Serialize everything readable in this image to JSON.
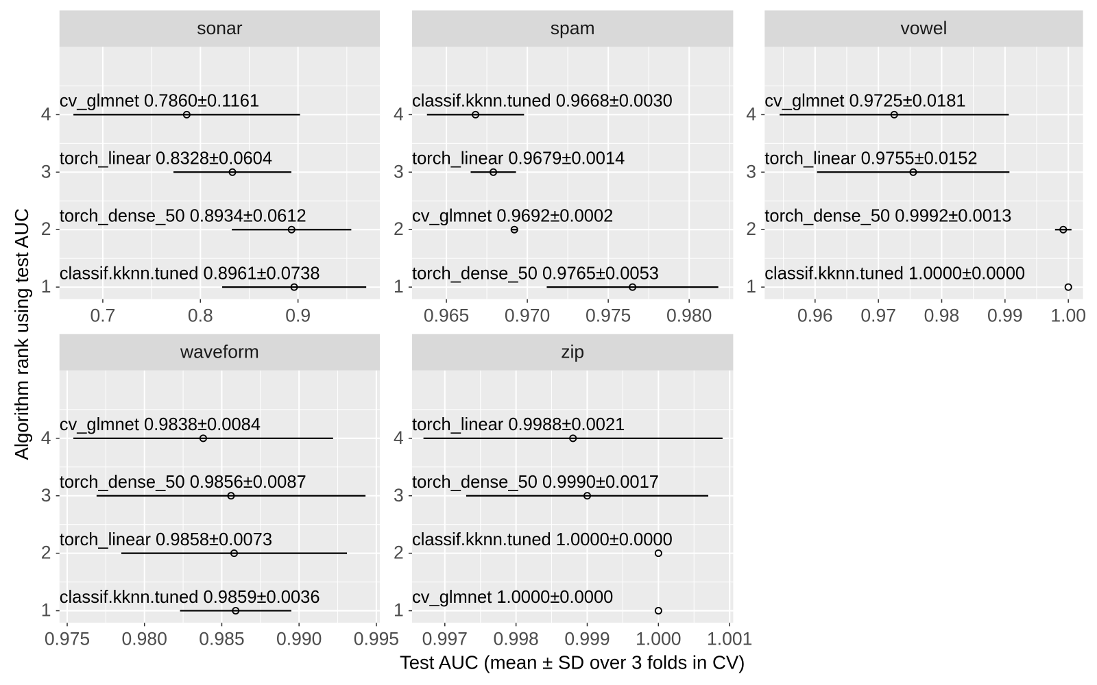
{
  "axis_labels": {
    "x": "Test AUC (mean ± SD over 3 folds in CV)",
    "y": "Algorithm rank using test AUC"
  },
  "chart_data": [
    {
      "type": "errorbar",
      "title": "sonar",
      "y": [
        4,
        3,
        2,
        1
      ],
      "values": [
        0.786,
        0.8328,
        0.8934,
        0.8961
      ],
      "errors": [
        0.1161,
        0.0604,
        0.0612,
        0.0738
      ],
      "value_labels": [
        "cv_glmnet 0.7860±0.1161",
        "torch_linear 0.8328±0.0604",
        "torch_dense_50 0.8934±0.0612",
        "classif.kknn.tuned 0.8961±0.0738"
      ],
      "xlim": [
        0.6556,
        0.9839
      ],
      "xticks": [
        0.7,
        0.8,
        0.9
      ],
      "ylim": [
        0.79,
        5.18
      ],
      "yticks": [
        1,
        2,
        3,
        4
      ]
    },
    {
      "type": "errorbar",
      "title": "spam",
      "y": [
        4,
        3,
        2,
        1
      ],
      "values": [
        0.9668,
        0.9679,
        0.9692,
        0.9765
      ],
      "errors": [
        0.003,
        0.0014,
        0.0002,
        0.0053
      ],
      "value_labels": [
        "classif.kknn.tuned 0.9668±0.0030",
        "torch_linear 0.9679±0.0014",
        "cv_glmnet 0.9692±0.0002",
        "torch_dense_50 0.9765±0.0053"
      ],
      "xlim": [
        0.96288,
        0.98272
      ],
      "xticks": [
        0.965,
        {
          "value": 0.97,
          "label": "0.970"
        },
        0.975,
        {
          "value": 0.98,
          "label": "0.980"
        }
      ],
      "ylim": [
        0.79,
        5.18
      ],
      "yticks": [
        1,
        2,
        3,
        4
      ]
    },
    {
      "type": "errorbar",
      "title": "vowel",
      "y": [
        4,
        3,
        2,
        1
      ],
      "values": [
        0.9725,
        0.9755,
        0.9992,
        1.0
      ],
      "errors": [
        0.0181,
        0.0152,
        0.0013,
        0.0
      ],
      "value_labels": [
        "cv_glmnet 0.9725±0.0181",
        "torch_linear 0.9755±0.0152",
        "torch_dense_50 0.9992±0.0013",
        "classif.kknn.tuned 1.0000±0.0000"
      ],
      "xlim": [
        0.95204,
        1.00232
      ],
      "xticks": [
        0.96,
        0.97,
        0.98,
        0.99,
        {
          "value": 1.0,
          "label": "1.00"
        }
      ],
      "ylim": [
        0.79,
        5.18
      ],
      "yticks": [
        1,
        2,
        3,
        4
      ]
    },
    {
      "type": "errorbar",
      "title": "waveform",
      "y": [
        4,
        3,
        2,
        1
      ],
      "values": [
        0.9838,
        0.9856,
        0.9858,
        0.9859
      ],
      "errors": [
        0.0084,
        0.0087,
        0.0073,
        0.0036
      ],
      "value_labels": [
        "cv_glmnet 0.9838±0.0084",
        "torch_dense_50 0.9856±0.0087",
        "torch_linear 0.9858±0.0073",
        "classif.kknn.tuned 0.9859±0.0036"
      ],
      "xlim": [
        0.9745,
        0.99523
      ],
      "xticks": [
        0.975,
        {
          "value": 0.98,
          "label": "0.980"
        },
        0.985,
        {
          "value": 0.99,
          "label": "0.990"
        },
        0.995
      ],
      "ylim": [
        0.79,
        5.18
      ],
      "yticks": [
        1,
        2,
        3,
        4
      ]
    },
    {
      "type": "errorbar",
      "title": "zip",
      "y": [
        4,
        3,
        2,
        1
      ],
      "values": [
        0.9988,
        0.999,
        1.0,
        1.0
      ],
      "errors": [
        0.0021,
        0.0017,
        0.0,
        0.0
      ],
      "value_labels": [
        "torch_linear 0.9988±0.0021",
        "torch_dense_50 0.9990±0.0017",
        "classif.kknn.tuned 1.0000±0.0000",
        "cv_glmnet 1.0000±0.0000"
      ],
      "xlim": [
        0.99654,
        1.00105
      ],
      "xticks": [
        0.997,
        0.998,
        0.999,
        {
          "value": 1.0,
          "label": "1.000"
        },
        1.001
      ],
      "ylim": [
        0.79,
        5.18
      ],
      "yticks": [
        1,
        2,
        3,
        4
      ]
    }
  ]
}
